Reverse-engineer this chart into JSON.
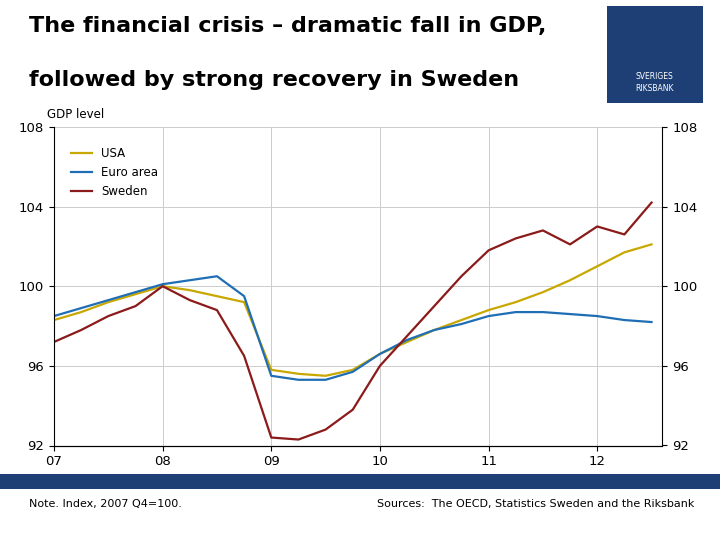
{
  "title_line1": "The financial crisis – dramatic fall in GDP,",
  "title_line2": "followed by strong recovery in Sweden",
  "ylabel": "GDP level",
  "note_left": "Note. Index, 2007 Q4=100.",
  "note_right": "Sources:  The OECD, Statistics Sweden and the Riksbank",
  "footer_color": "#1e3f75",
  "logo_color": "#1e3f75",
  "background_color": "#ffffff",
  "ylim": [
    92,
    108
  ],
  "yticks": [
    92,
    96,
    100,
    104,
    108
  ],
  "xticks": [
    7,
    8,
    9,
    10,
    11,
    12
  ],
  "xticklabels": [
    "07",
    "08",
    "09",
    "10",
    "11",
    "12"
  ],
  "grid_color": "#cccccc",
  "usa_color": "#c8a800",
  "euro_color": "#1f6eb5",
  "sweden_color": "#8b1a1a",
  "usa_label": "USA",
  "euro_label": "Euro area",
  "sweden_label": "Sweden",
  "usa_x": [
    7.0,
    7.25,
    7.5,
    7.75,
    8.0,
    8.25,
    8.5,
    8.75,
    9.0,
    9.25,
    9.5,
    9.75,
    10.0,
    10.25,
    10.5,
    10.75,
    11.0,
    11.25,
    11.5,
    11.75,
    12.0,
    12.25,
    12.5
  ],
  "usa_y": [
    98.3,
    98.7,
    99.2,
    99.6,
    100.0,
    99.8,
    99.5,
    99.2,
    95.8,
    95.6,
    95.5,
    95.8,
    96.6,
    97.2,
    97.8,
    98.3,
    98.8,
    99.2,
    99.7,
    100.3,
    101.0,
    101.7,
    102.1
  ],
  "euro_x": [
    7.0,
    7.25,
    7.5,
    7.75,
    8.0,
    8.25,
    8.5,
    8.75,
    9.0,
    9.25,
    9.5,
    9.75,
    10.0,
    10.25,
    10.5,
    10.75,
    11.0,
    11.25,
    11.5,
    11.75,
    12.0,
    12.25,
    12.5
  ],
  "euro_y": [
    98.5,
    98.9,
    99.3,
    99.7,
    100.1,
    100.3,
    100.5,
    99.5,
    95.5,
    95.3,
    95.3,
    95.7,
    96.6,
    97.3,
    97.8,
    98.1,
    98.5,
    98.7,
    98.7,
    98.6,
    98.5,
    98.3,
    98.2
  ],
  "sweden_x": [
    7.0,
    7.25,
    7.5,
    7.75,
    8.0,
    8.25,
    8.5,
    8.75,
    9.0,
    9.25,
    9.5,
    9.75,
    10.0,
    10.25,
    10.5,
    10.75,
    11.0,
    11.25,
    11.5,
    11.75,
    12.0,
    12.25,
    12.5
  ],
  "sweden_y": [
    97.2,
    97.8,
    98.5,
    99.0,
    100.0,
    99.3,
    98.8,
    96.5,
    92.4,
    92.3,
    92.8,
    93.8,
    96.0,
    97.5,
    99.0,
    100.5,
    101.8,
    102.4,
    102.8,
    102.1,
    103.0,
    102.6,
    104.2
  ]
}
